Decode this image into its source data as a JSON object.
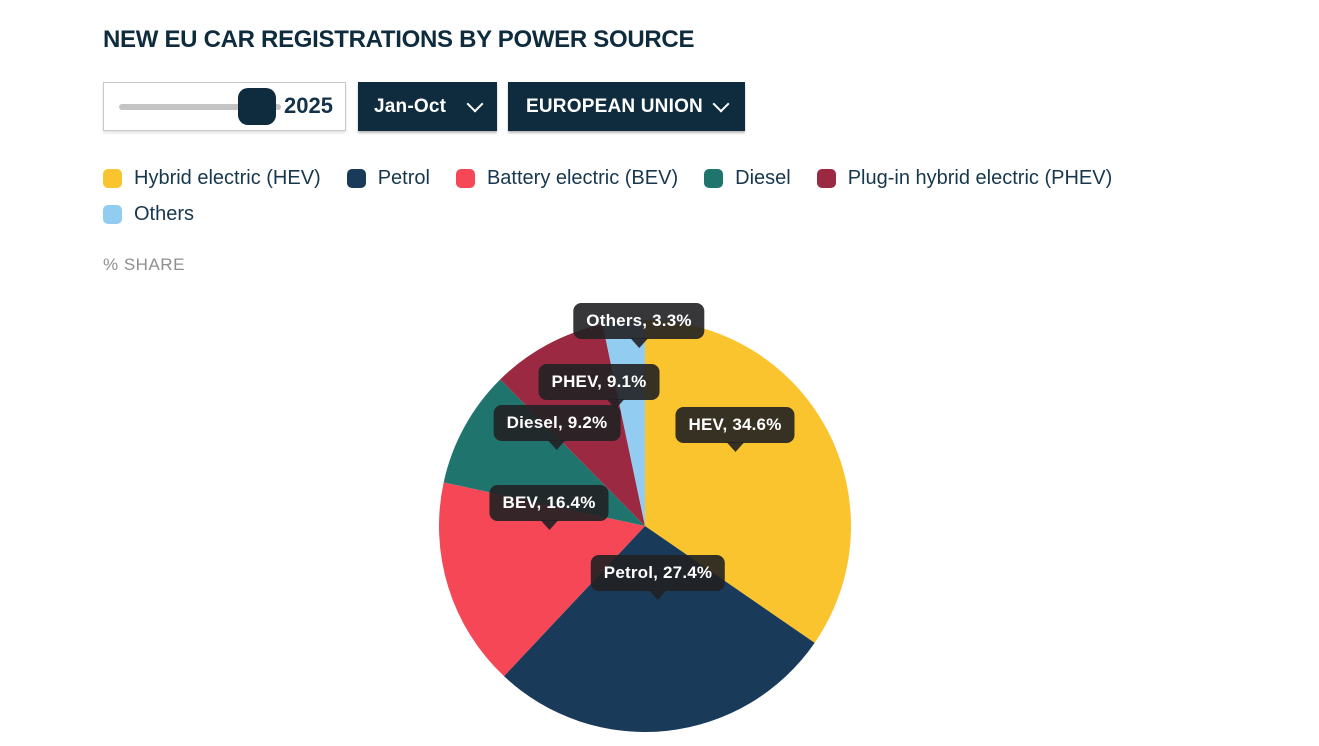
{
  "title": "NEW EU CAR REGISTRATIONS BY POWER SOURCE",
  "controls": {
    "year_slider": {
      "value": "2025"
    },
    "period_dropdown": {
      "label": "Jan-Oct"
    },
    "region_dropdown": {
      "label": "EUROPEAN UNION"
    }
  },
  "legend": [
    {
      "label": "Hybrid electric (HEV)",
      "color": "#f9c42e"
    },
    {
      "label": "Petrol",
      "color": "#193a58"
    },
    {
      "label": "Battery electric (BEV)",
      "color": "#f54756"
    },
    {
      "label": "Diesel",
      "color": "#1f756e"
    },
    {
      "label": "Plug-in hybrid electric (PHEV)",
      "color": "#9c2942"
    },
    {
      "label": "Others",
      "color": "#92ccf0"
    }
  ],
  "axis_note": "% SHARE",
  "chart_data": {
    "type": "pie",
    "title": "NEW EU CAR REGISTRATIONS BY POWER SOURCE",
    "unit": "% share",
    "categories": [
      "Hybrid electric (HEV)",
      "Petrol",
      "Battery electric (BEV)",
      "Diesel",
      "Plug-in hybrid electric (PHEV)",
      "Others"
    ],
    "values": [
      34.6,
      27.4,
      16.4,
      9.2,
      9.1,
      3.3
    ],
    "colors": [
      "#f9c42e",
      "#193a58",
      "#f54756",
      "#1f756e",
      "#9c2942",
      "#92ccf0"
    ],
    "labels": [
      "HEV, 34.6%",
      "Petrol, 27.4%",
      "BEV, 16.4%",
      "Diesel, 9.2%",
      "PHEV, 9.1%",
      "Others, 3.3%"
    ],
    "start_angle_deg": 0,
    "direction": "clockwise",
    "legend_position": "top"
  }
}
